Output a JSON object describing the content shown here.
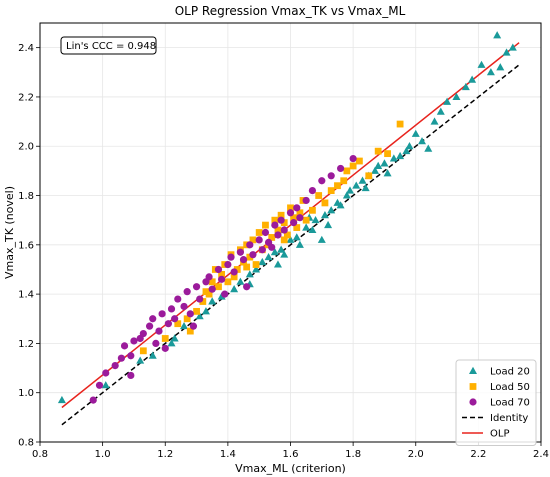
{
  "chart_data": {
    "type": "scatter",
    "title": "OLP Regression Vmax_TK vs Vmax_ML",
    "xlabel": "Vmax_ML (criterion)",
    "ylabel": "Vmax_TK (novel)",
    "xlim": [
      0.8,
      2.4
    ],
    "ylim": [
      0.8,
      2.5
    ],
    "xticks": [
      "0.8",
      "1.0",
      "1.2",
      "1.4",
      "1.6",
      "1.8",
      "2.0",
      "2.2",
      "2.4"
    ],
    "yticks": [
      "0.8",
      "1.0",
      "1.2",
      "1.4",
      "1.6",
      "1.8",
      "2.0",
      "2.2",
      "2.4"
    ],
    "grid": true,
    "legend_position": "bottom-right",
    "annotation": "Lin's CCC = 0.948",
    "series": [
      {
        "name": "Load 20",
        "marker": "triangle",
        "color": "#1a9a9a",
        "points": [
          [
            0.87,
            0.97
          ],
          [
            1.01,
            1.03
          ],
          [
            1.12,
            1.13
          ],
          [
            1.16,
            1.15
          ],
          [
            1.22,
            1.2
          ],
          [
            1.23,
            1.22
          ],
          [
            1.26,
            1.27
          ],
          [
            1.31,
            1.31
          ],
          [
            1.33,
            1.33
          ],
          [
            1.35,
            1.37
          ],
          [
            1.38,
            1.39
          ],
          [
            1.42,
            1.42
          ],
          [
            1.44,
            1.45
          ],
          [
            1.47,
            1.48
          ],
          [
            1.49,
            1.5
          ],
          [
            1.51,
            1.53
          ],
          [
            1.53,
            1.55
          ],
          [
            1.55,
            1.57
          ],
          [
            1.57,
            1.58
          ],
          [
            1.58,
            1.56
          ],
          [
            1.6,
            1.62
          ],
          [
            1.62,
            1.63
          ],
          [
            1.63,
            1.6
          ],
          [
            1.65,
            1.67
          ],
          [
            1.67,
            1.66
          ],
          [
            1.68,
            1.7
          ],
          [
            1.7,
            1.62
          ],
          [
            1.71,
            1.72
          ],
          [
            1.73,
            1.74
          ],
          [
            1.75,
            1.77
          ],
          [
            1.76,
            1.76
          ],
          [
            1.78,
            1.8
          ],
          [
            1.79,
            1.82
          ],
          [
            1.81,
            1.84
          ],
          [
            1.83,
            1.86
          ],
          [
            1.84,
            1.83
          ],
          [
            1.85,
            1.88
          ],
          [
            1.87,
            1.9
          ],
          [
            1.88,
            1.92
          ],
          [
            1.9,
            1.93
          ],
          [
            1.91,
            1.89
          ],
          [
            1.93,
            1.95
          ],
          [
            1.95,
            1.96
          ],
          [
            1.97,
            1.98
          ],
          [
            1.98,
            2.0
          ],
          [
            2.0,
            2.05
          ],
          [
            2.02,
            2.02
          ],
          [
            2.04,
            1.99
          ],
          [
            2.06,
            2.1
          ],
          [
            2.08,
            2.14
          ],
          [
            2.1,
            2.18
          ],
          [
            2.13,
            2.2
          ],
          [
            2.16,
            2.24
          ],
          [
            2.18,
            2.27
          ],
          [
            2.21,
            2.33
          ],
          [
            2.24,
            2.3
          ],
          [
            2.26,
            2.45
          ],
          [
            2.27,
            2.32
          ],
          [
            2.29,
            2.38
          ],
          [
            2.31,
            2.4
          ],
          [
            1.58,
            1.66
          ],
          [
            1.66,
            1.71
          ],
          [
            1.72,
            1.68
          ],
          [
            1.56,
            1.52
          ],
          [
            1.47,
            1.44
          ]
        ]
      },
      {
        "name": "Load 50",
        "marker": "square",
        "color": "#ffb000",
        "points": [
          [
            1.13,
            1.17
          ],
          [
            1.2,
            1.22
          ],
          [
            1.24,
            1.28
          ],
          [
            1.27,
            1.3
          ],
          [
            1.3,
            1.33
          ],
          [
            1.32,
            1.37
          ],
          [
            1.34,
            1.4
          ],
          [
            1.35,
            1.45
          ],
          [
            1.36,
            1.5
          ],
          [
            1.38,
            1.48
          ],
          [
            1.39,
            1.52
          ],
          [
            1.4,
            1.45
          ],
          [
            1.41,
            1.56
          ],
          [
            1.43,
            1.5
          ],
          [
            1.44,
            1.58
          ],
          [
            1.45,
            1.53
          ],
          [
            1.46,
            1.6
          ],
          [
            1.47,
            1.55
          ],
          [
            1.48,
            1.62
          ],
          [
            1.49,
            1.52
          ],
          [
            1.5,
            1.65
          ],
          [
            1.51,
            1.58
          ],
          [
            1.52,
            1.68
          ],
          [
            1.53,
            1.6
          ],
          [
            1.54,
            1.63
          ],
          [
            1.55,
            1.7
          ],
          [
            1.56,
            1.66
          ],
          [
            1.57,
            1.72
          ],
          [
            1.58,
            1.69
          ],
          [
            1.59,
            1.64
          ],
          [
            1.6,
            1.75
          ],
          [
            1.61,
            1.71
          ],
          [
            1.62,
            1.67
          ],
          [
            1.63,
            1.73
          ],
          [
            1.64,
            1.78
          ],
          [
            1.65,
            1.7
          ],
          [
            1.67,
            1.74
          ],
          [
            1.69,
            1.8
          ],
          [
            1.71,
            1.77
          ],
          [
            1.73,
            1.82
          ],
          [
            1.75,
            1.84
          ],
          [
            1.77,
            1.86
          ],
          [
            1.78,
            1.9
          ],
          [
            1.8,
            1.92
          ],
          [
            1.82,
            1.94
          ],
          [
            1.85,
            1.88
          ],
          [
            1.88,
            1.98
          ],
          [
            1.91,
            1.97
          ],
          [
            1.95,
            2.09
          ],
          [
            1.28,
            1.25
          ],
          [
            1.33,
            1.41
          ],
          [
            1.37,
            1.43
          ],
          [
            1.42,
            1.47
          ],
          [
            1.46,
            1.51
          ],
          [
            1.58,
            1.62
          ]
        ]
      },
      {
        "name": "Load 70",
        "marker": "circle",
        "color": "#9b1b9b",
        "points": [
          [
            0.97,
            0.97
          ],
          [
            0.99,
            1.03
          ],
          [
            1.01,
            1.08
          ],
          [
            1.04,
            1.11
          ],
          [
            1.06,
            1.14
          ],
          [
            1.07,
            1.19
          ],
          [
            1.09,
            1.15
          ],
          [
            1.1,
            1.21
          ],
          [
            1.12,
            1.22
          ],
          [
            1.13,
            1.24
          ],
          [
            1.15,
            1.27
          ],
          [
            1.16,
            1.3
          ],
          [
            1.18,
            1.25
          ],
          [
            1.19,
            1.32
          ],
          [
            1.21,
            1.28
          ],
          [
            1.22,
            1.34
          ],
          [
            1.23,
            1.3
          ],
          [
            1.24,
            1.38
          ],
          [
            1.26,
            1.35
          ],
          [
            1.27,
            1.41
          ],
          [
            1.28,
            1.32
          ],
          [
            1.3,
            1.43
          ],
          [
            1.31,
            1.38
          ],
          [
            1.33,
            1.45
          ],
          [
            1.34,
            1.47
          ],
          [
            1.35,
            1.42
          ],
          [
            1.37,
            1.5
          ],
          [
            1.38,
            1.46
          ],
          [
            1.4,
            1.52
          ],
          [
            1.41,
            1.55
          ],
          [
            1.42,
            1.49
          ],
          [
            1.44,
            1.57
          ],
          [
            1.45,
            1.54
          ],
          [
            1.47,
            1.6
          ],
          [
            1.48,
            1.56
          ],
          [
            1.5,
            1.62
          ],
          [
            1.51,
            1.58
          ],
          [
            1.52,
            1.65
          ],
          [
            1.53,
            1.61
          ],
          [
            1.55,
            1.68
          ],
          [
            1.56,
            1.64
          ],
          [
            1.57,
            1.7
          ],
          [
            1.58,
            1.66
          ],
          [
            1.6,
            1.73
          ],
          [
            1.61,
            1.69
          ],
          [
            1.62,
            1.75
          ],
          [
            1.63,
            1.71
          ],
          [
            1.65,
            1.78
          ],
          [
            1.67,
            1.82
          ],
          [
            1.7,
            1.86
          ],
          [
            1.73,
            1.88
          ],
          [
            1.76,
            1.91
          ],
          [
            1.8,
            1.95
          ],
          [
            1.09,
            1.07
          ],
          [
            1.17,
            1.2
          ],
          [
            1.2,
            1.18
          ],
          [
            1.29,
            1.27
          ],
          [
            1.39,
            1.4
          ],
          [
            1.46,
            1.43
          ],
          [
            1.54,
            1.59
          ]
        ]
      }
    ],
    "lines": [
      {
        "name": "Identity",
        "style": "dashed",
        "color": "#000000",
        "points": [
          [
            0.87,
            0.87
          ],
          [
            2.33,
            2.33
          ]
        ]
      },
      {
        "name": "OLP",
        "style": "solid",
        "color": "#e8231d",
        "points": [
          [
            0.87,
            0.94
          ],
          [
            2.33,
            2.42
          ]
        ]
      }
    ]
  }
}
